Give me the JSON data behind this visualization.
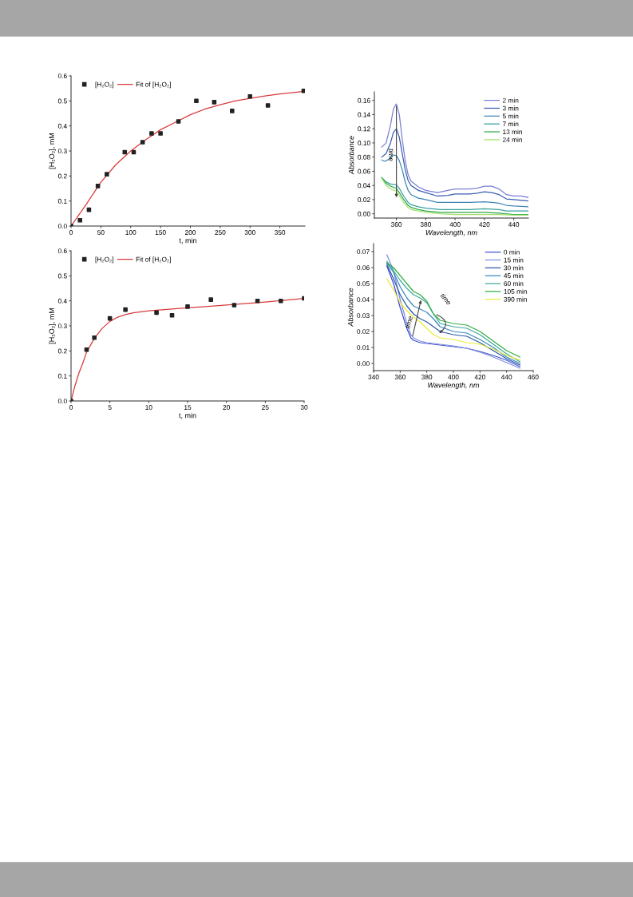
{
  "chart_data": [
    {
      "type": "scatter",
      "xlabel": "t, min",
      "ylabel": "[H₂O₂], mM",
      "xlim": [
        0,
        392
      ],
      "ylim": [
        0,
        0.6
      ],
      "xticks": [
        0,
        50,
        100,
        150,
        200,
        250,
        300,
        350
      ],
      "yticks": [
        {
          "value": 0,
          "label": "0.0"
        },
        0.1,
        0.2,
        0.3,
        0.4,
        0.5,
        0.6
      ],
      "legend": "top left",
      "series": [
        {
          "name": "[H₂O₂]",
          "color": "#222222",
          "marker": "square",
          "x": [
            0,
            15,
            30,
            45,
            60,
            90,
            105,
            120,
            135,
            150,
            180,
            210,
            240,
            270,
            300,
            330,
            390
          ],
          "values": [
            0,
            0.023,
            0.065,
            0.16,
            0.207,
            0.295,
            0.295,
            0.335,
            0.37,
            0.37,
            0.418,
            0.5,
            0.495,
            0.46,
            0.518,
            0.482,
            0.54
          ]
        },
        {
          "name": "Fit of [H₂O₂]",
          "type": "line",
          "color": "#d93a3a",
          "x": [
            0,
            25,
            50,
            75,
            100,
            125,
            150,
            175,
            200,
            225,
            250,
            275,
            300,
            325,
            350,
            390
          ],
          "values": [
            0,
            0.085,
            0.175,
            0.245,
            0.3,
            0.345,
            0.385,
            0.415,
            0.445,
            0.468,
            0.485,
            0.5,
            0.51,
            0.52,
            0.528,
            0.538
          ]
        }
      ]
    },
    {
      "type": "scatter",
      "xlabel": "t, min",
      "ylabel": "[H₂O₂], mM",
      "xlim": [
        0,
        30
      ],
      "ylim": [
        0,
        0.6
      ],
      "xticks": [
        0,
        5,
        10,
        15,
        20,
        25,
        30
      ],
      "yticks": [
        {
          "value": 0,
          "label": "0.0"
        },
        0.1,
        0.2,
        0.3,
        0.4,
        0.5,
        0.6
      ],
      "legend": "top left",
      "series": [
        {
          "name": "[H₂O₂]",
          "color": "#222222",
          "marker": "square",
          "x": [
            0,
            2,
            3,
            5,
            7,
            11,
            13,
            15,
            18,
            21,
            24,
            27,
            30
          ],
          "values": [
            0,
            0.205,
            0.253,
            0.33,
            0.365,
            0.353,
            0.342,
            0.377,
            0.405,
            0.383,
            0.4,
            0.4,
            0.41
          ]
        },
        {
          "name": "Fit of [H₂O₂]",
          "type": "line",
          "color": "#d93a3a",
          "x": [
            0,
            0.5,
            1,
            1.5,
            2,
            3,
            4,
            5,
            6,
            7,
            8,
            10,
            15,
            20,
            25,
            30
          ],
          "values": [
            0,
            0.06,
            0.11,
            0.15,
            0.195,
            0.25,
            0.29,
            0.318,
            0.335,
            0.345,
            0.352,
            0.36,
            0.372,
            0.383,
            0.395,
            0.41
          ]
        }
      ]
    },
    {
      "type": "line",
      "xlabel": "Wavelength, nm",
      "ylabel": "Absorbance",
      "xlim": [
        345,
        450
      ],
      "ylim": [
        -0.006,
        0.172
      ],
      "xticks": [
        360,
        380,
        400,
        420,
        440
      ],
      "yticks": [
        {
          "value": 0,
          "label": "0.00"
        },
        {
          "value": 0.02,
          "label": "0.02"
        },
        {
          "value": 0.04,
          "label": "0.04"
        },
        {
          "value": 0.06,
          "label": "0.06"
        },
        {
          "value": 0.08,
          "label": "0.08"
        },
        {
          "value": 0.1,
          "label": "0.10"
        },
        {
          "value": 0.12,
          "label": "0.12"
        },
        {
          "value": 0.14,
          "label": "0.14"
        },
        {
          "value": 0.16,
          "label": "0.16"
        }
      ],
      "legend": "top right",
      "annotations": [
        "time"
      ],
      "series": [
        {
          "name": "2 min",
          "color": "#7b7fd9",
          "x": [
            350,
            353,
            356,
            358,
            360,
            362,
            364,
            366,
            368,
            370,
            375,
            380,
            388,
            395,
            400,
            410,
            415,
            420,
            425,
            430,
            435,
            440,
            445,
            450
          ],
          "values": [
            0.094,
            0.1,
            0.125,
            0.148,
            0.155,
            0.14,
            0.105,
            0.075,
            0.055,
            0.046,
            0.038,
            0.033,
            0.03,
            0.033,
            0.035,
            0.035,
            0.036,
            0.039,
            0.039,
            0.035,
            0.027,
            0.025,
            0.025,
            0.023
          ]
        },
        {
          "name": "3 min",
          "color": "#3a5fb0",
          "x": [
            350,
            353,
            356,
            358,
            360,
            362,
            364,
            366,
            368,
            370,
            375,
            380,
            388,
            395,
            400,
            410,
            415,
            420,
            425,
            430,
            435,
            440,
            450
          ],
          "values": [
            0.08,
            0.085,
            0.1,
            0.115,
            0.12,
            0.108,
            0.085,
            0.062,
            0.047,
            0.04,
            0.033,
            0.03,
            0.025,
            0.026,
            0.028,
            0.028,
            0.029,
            0.031,
            0.03,
            0.027,
            0.021,
            0.02,
            0.018
          ]
        },
        {
          "name": "5 min",
          "color": "#3f85b5",
          "x": [
            350,
            352,
            355,
            358,
            360,
            362,
            364,
            366,
            368,
            370,
            375,
            380,
            388,
            400,
            410,
            420,
            425,
            430,
            435,
            440,
            450
          ],
          "values": [
            0.076,
            0.074,
            0.077,
            0.083,
            0.082,
            0.075,
            0.062,
            0.045,
            0.033,
            0.027,
            0.022,
            0.02,
            0.016,
            0.016,
            0.016,
            0.017,
            0.016,
            0.015,
            0.012,
            0.011,
            0.01
          ]
        },
        {
          "name": "7 min",
          "color": "#3aa0a0",
          "x": [
            350,
            353,
            356,
            360,
            362,
            365,
            368,
            370,
            375,
            380,
            390,
            400,
            410,
            420,
            430,
            435,
            440,
            450
          ],
          "values": [
            0.051,
            0.045,
            0.042,
            0.041,
            0.036,
            0.025,
            0.016,
            0.013,
            0.01,
            0.008,
            0.006,
            0.006,
            0.006,
            0.007,
            0.006,
            0.004,
            0.004,
            0.004
          ]
        },
        {
          "name": "13 min",
          "color": "#2ea84a",
          "x": [
            350,
            353,
            356,
            360,
            362,
            365,
            368,
            370,
            375,
            380,
            390,
            400,
            410,
            420,
            430,
            440,
            450
          ],
          "values": [
            0.051,
            0.043,
            0.039,
            0.036,
            0.03,
            0.02,
            0.012,
            0.009,
            0.006,
            0.004,
            0.002,
            0.002,
            0.002,
            0.002,
            0.001,
            -0.001,
            -0.001
          ]
        },
        {
          "name": "24 min",
          "color": "#a8e070",
          "x": [
            350,
            353,
            356,
            360,
            362,
            365,
            368,
            370,
            375,
            380,
            390,
            400,
            420,
            430,
            440,
            450
          ],
          "values": [
            0.05,
            0.04,
            0.035,
            0.032,
            0.026,
            0.016,
            0.009,
            0.006,
            0.004,
            0.002,
            0,
            -0.001,
            -0.001,
            -0.001,
            -0.002,
            -0.002
          ]
        }
      ]
    },
    {
      "type": "line",
      "xlabel": "Wavelength, nm",
      "ylabel": "Absorbance",
      "xlim": [
        340,
        460
      ],
      "ylim": [
        -0.0045,
        0.075
      ],
      "xticks": [
        340,
        360,
        380,
        400,
        420,
        440,
        460
      ],
      "yticks": [
        {
          "value": 0,
          "label": "0.00"
        },
        {
          "value": 0.01,
          "label": "0.01"
        },
        {
          "value": 0.02,
          "label": "0.02"
        },
        {
          "value": 0.03,
          "label": "0.03"
        },
        {
          "value": 0.04,
          "label": "0.04"
        },
        {
          "value": 0.05,
          "label": "0.05"
        },
        {
          "value": 0.06,
          "label": "0.06"
        },
        {
          "value": 0.07,
          "label": "0.07"
        }
      ],
      "legend": "top right",
      "annotations": [
        {
          "text": "time",
          "x": 376,
          "y": 0.041
        },
        "time"
      ],
      "series": [
        {
          "name": "0 min",
          "color": "#4050d0",
          "x": [
            350,
            355,
            360,
            365,
            368,
            370,
            375,
            380,
            390,
            400,
            410,
            420,
            430,
            440,
            450
          ],
          "values": [
            0.061,
            0.05,
            0.035,
            0.022,
            0.016,
            0.0145,
            0.013,
            0.0125,
            0.0115,
            0.0105,
            0.0095,
            0.0075,
            0.005,
            0.002,
            -0.002
          ]
        },
        {
          "name": "15 min",
          "color": "#8090e0",
          "x": [
            350,
            355,
            360,
            365,
            368,
            370,
            375,
            380,
            390,
            400,
            410,
            420,
            430,
            440,
            450
          ],
          "values": [
            0.068,
            0.058,
            0.04,
            0.025,
            0.018,
            0.016,
            0.014,
            0.013,
            0.012,
            0.011,
            0.0095,
            0.007,
            0.004,
            0.0005,
            -0.003
          ]
        },
        {
          "name": "30 min",
          "color": "#2a5aa8",
          "x": [
            350,
            355,
            360,
            365,
            370,
            375,
            380,
            385,
            390,
            400,
            410,
            420,
            430,
            440,
            450
          ],
          "values": [
            0.062,
            0.053,
            0.043,
            0.036,
            0.031,
            0.028,
            0.026,
            0.023,
            0.02,
            0.018,
            0.017,
            0.013,
            0.008,
            0.003,
            -0.001
          ]
        },
        {
          "name": "45 min",
          "color": "#3a88c0",
          "x": [
            350,
            355,
            360,
            365,
            370,
            375,
            380,
            385,
            390,
            400,
            410,
            420,
            430,
            440,
            450
          ],
          "values": [
            0.063,
            0.057,
            0.048,
            0.041,
            0.036,
            0.034,
            0.032,
            0.028,
            0.023,
            0.02,
            0.019,
            0.015,
            0.01,
            0.004,
            0
          ]
        },
        {
          "name": "60 min",
          "color": "#40a8a0",
          "x": [
            350,
            355,
            360,
            365,
            370,
            375,
            380,
            385,
            390,
            400,
            410,
            420,
            430,
            440,
            450
          ],
          "values": [
            0.064,
            0.058,
            0.052,
            0.047,
            0.043,
            0.041,
            0.038,
            0.031,
            0.025,
            0.023,
            0.022,
            0.018,
            0.012,
            0.006,
            0.001
          ]
        },
        {
          "name": "105 min",
          "color": "#30b040",
          "x": [
            350,
            355,
            360,
            365,
            370,
            375,
            380,
            385,
            390,
            400,
            410,
            420,
            430,
            440,
            450
          ],
          "values": [
            0.063,
            0.06,
            0.055,
            0.05,
            0.045,
            0.043,
            0.039,
            0.031,
            0.027,
            0.025,
            0.024,
            0.02,
            0.014,
            0.008,
            0.004
          ]
        },
        {
          "name": "390 min",
          "color": "#eaea3a",
          "x": [
            350,
            355,
            360,
            365,
            370,
            375,
            380,
            385,
            390,
            400,
            410,
            420,
            430,
            440,
            450
          ],
          "values": [
            0.053,
            0.046,
            0.038,
            0.033,
            0.029,
            0.026,
            0.022,
            0.018,
            0.016,
            0.015,
            0.013,
            0.012,
            0.009,
            0.005,
            0.002
          ]
        }
      ]
    }
  ]
}
